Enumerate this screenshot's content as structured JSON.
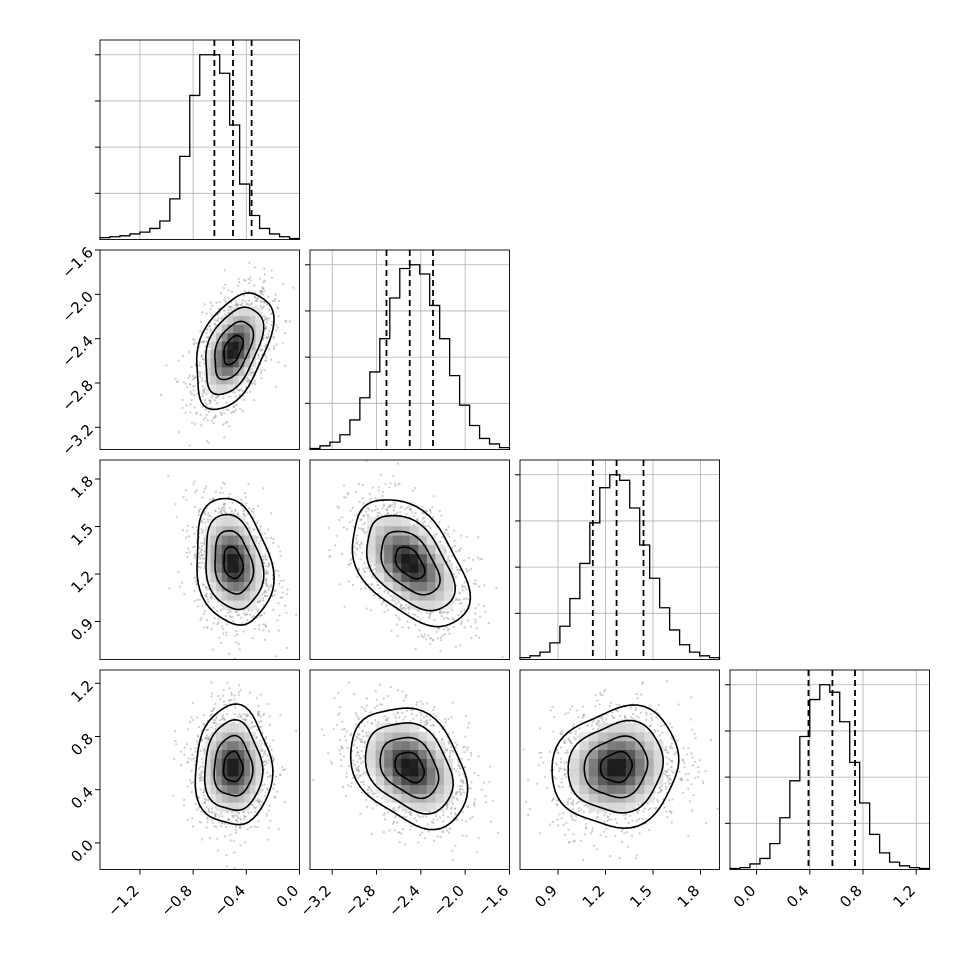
{
  "chart_data": {
    "type": "corner",
    "title": "",
    "parameters": [
      {
        "name": "",
        "range": [
          -1.5,
          0.0
        ],
        "median": -0.5,
        "q16": -0.64,
        "q84": -0.36,
        "sigma": 0.115,
        "ticks": [
          -1.2,
          -0.8,
          -0.4,
          0.0
        ],
        "tick_labels": [
          "−1.2",
          "−0.8",
          "−0.4",
          "0.0"
        ],
        "hist": [
          1,
          1.5,
          2,
          3,
          4,
          6,
          10,
          22,
          45,
          78,
          100,
          100,
          90,
          62,
          30,
          13,
          6,
          3,
          1.5,
          0.5
        ]
      },
      {
        "name": "",
        "range": [
          -3.4,
          -1.6
        ],
        "median": -2.5,
        "q16": -2.71,
        "q84": -2.29,
        "sigma": 0.21,
        "ticks": [
          -3.2,
          -2.8,
          -2.4,
          -2.0,
          -1.6
        ],
        "tick_labels": [
          "−3.2",
          "−2.8",
          "−2.4",
          "−2.0",
          "−1.6"
        ],
        "hist": [
          0.5,
          2,
          4,
          8,
          16,
          28,
          42,
          60,
          82,
          98,
          100,
          95,
          78,
          60,
          40,
          24,
          13,
          6,
          3,
          1
        ]
      },
      {
        "name": "",
        "range": [
          0.66,
          1.92
        ],
        "median": 1.27,
        "q16": 1.12,
        "q84": 1.44,
        "sigma": 0.16,
        "ticks": [
          0.9,
          1.2,
          1.5,
          1.8
        ],
        "tick_labels": [
          "0.9",
          "1.2",
          "1.5",
          "1.8"
        ],
        "hist": [
          1,
          2,
          4,
          9,
          18,
          33,
          52,
          74,
          93,
          100,
          97,
          82,
          62,
          44,
          28,
          16,
          8,
          4,
          2,
          1
        ]
      },
      {
        "name": "",
        "range": [
          -0.2,
          1.3
        ],
        "median": 0.57,
        "q16": 0.39,
        "q84": 0.74,
        "sigma": 0.18,
        "ticks": [
          0.0,
          0.4,
          0.8,
          1.2
        ],
        "tick_labels": [
          "0.0",
          "0.4",
          "0.8",
          "1.2"
        ],
        "hist": [
          0.5,
          1,
          3,
          6,
          14,
          28,
          48,
          72,
          92,
          100,
          96,
          80,
          58,
          36,
          19,
          9,
          4,
          2,
          1,
          0.5
        ]
      }
    ],
    "correlations": [
      [
        0,
        1,
        0.45
      ],
      [
        0,
        2,
        -0.2
      ],
      [
        0,
        3,
        0.0
      ],
      [
        1,
        2,
        -0.45
      ],
      [
        1,
        3,
        -0.3
      ],
      [
        2,
        3,
        0.1
      ]
    ],
    "grid": true,
    "quantiles": [
      0.16,
      0.5,
      0.84
    ],
    "contour_levels_sigma": [
      0.5,
      1.0,
      1.5,
      2.0
    ]
  }
}
